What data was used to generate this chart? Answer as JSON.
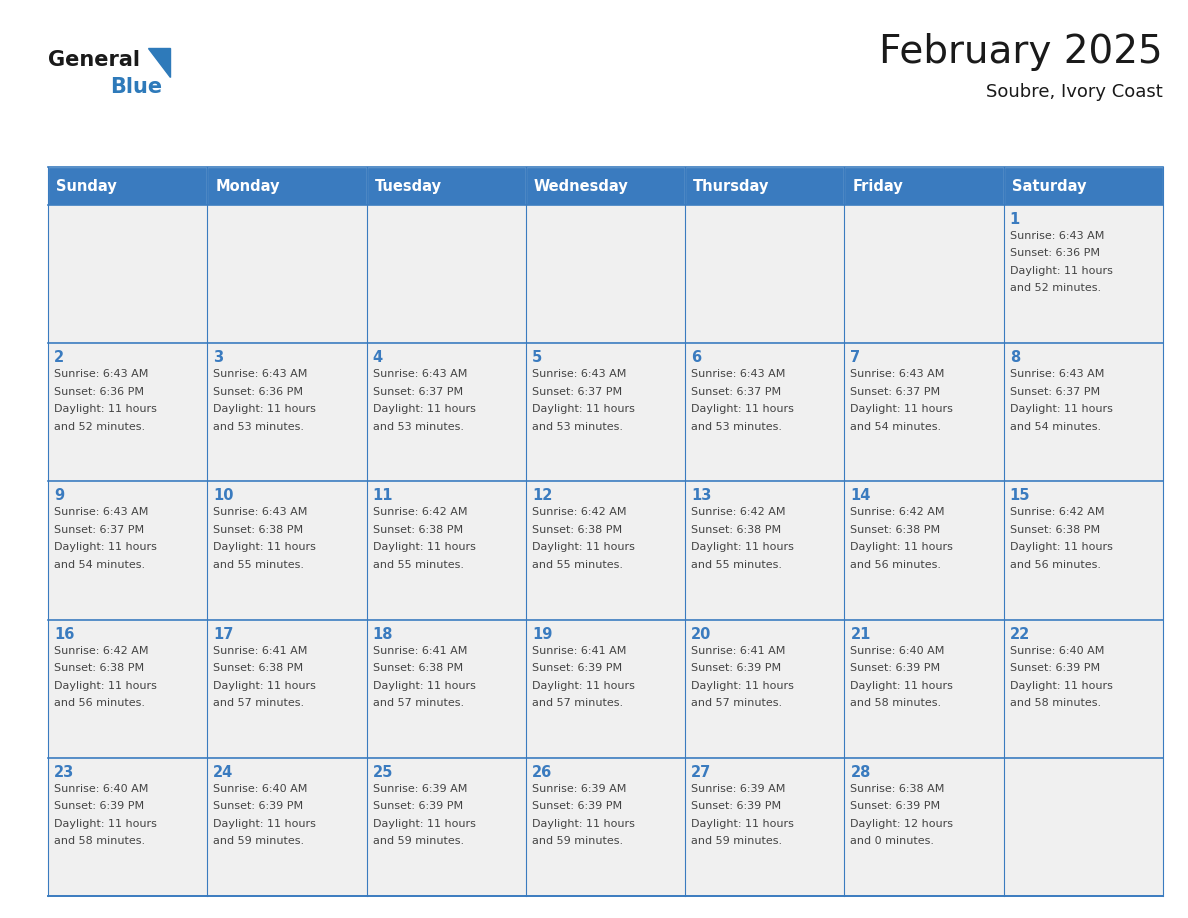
{
  "title": "February 2025",
  "subtitle": "Soubre, Ivory Coast",
  "header_bg_color": "#3a7bbf",
  "header_text_color": "#ffffff",
  "cell_bg_color": "#f0f0f0",
  "day_headers": [
    "Sunday",
    "Monday",
    "Tuesday",
    "Wednesday",
    "Thursday",
    "Friday",
    "Saturday"
  ],
  "grid_line_color": "#3a7bbf",
  "number_color": "#3a7bbf",
  "text_color": "#444444",
  "logo_general_color": "#1a1a1a",
  "logo_blue_color": "#2e7aba",
  "weeks": [
    [
      null,
      null,
      null,
      null,
      null,
      null,
      1
    ],
    [
      2,
      3,
      4,
      5,
      6,
      7,
      8
    ],
    [
      9,
      10,
      11,
      12,
      13,
      14,
      15
    ],
    [
      16,
      17,
      18,
      19,
      20,
      21,
      22
    ],
    [
      23,
      24,
      25,
      26,
      27,
      28,
      null
    ]
  ],
  "day_data": {
    "1": {
      "sunrise": "6:43 AM",
      "sunset": "6:36 PM",
      "daylight_h": "11",
      "daylight_m": "52"
    },
    "2": {
      "sunrise": "6:43 AM",
      "sunset": "6:36 PM",
      "daylight_h": "11",
      "daylight_m": "52"
    },
    "3": {
      "sunrise": "6:43 AM",
      "sunset": "6:36 PM",
      "daylight_h": "11",
      "daylight_m": "53"
    },
    "4": {
      "sunrise": "6:43 AM",
      "sunset": "6:37 PM",
      "daylight_h": "11",
      "daylight_m": "53"
    },
    "5": {
      "sunrise": "6:43 AM",
      "sunset": "6:37 PM",
      "daylight_h": "11",
      "daylight_m": "53"
    },
    "6": {
      "sunrise": "6:43 AM",
      "sunset": "6:37 PM",
      "daylight_h": "11",
      "daylight_m": "53"
    },
    "7": {
      "sunrise": "6:43 AM",
      "sunset": "6:37 PM",
      "daylight_h": "11",
      "daylight_m": "54"
    },
    "8": {
      "sunrise": "6:43 AM",
      "sunset": "6:37 PM",
      "daylight_h": "11",
      "daylight_m": "54"
    },
    "9": {
      "sunrise": "6:43 AM",
      "sunset": "6:37 PM",
      "daylight_h": "11",
      "daylight_m": "54"
    },
    "10": {
      "sunrise": "6:43 AM",
      "sunset": "6:38 PM",
      "daylight_h": "11",
      "daylight_m": "55"
    },
    "11": {
      "sunrise": "6:42 AM",
      "sunset": "6:38 PM",
      "daylight_h": "11",
      "daylight_m": "55"
    },
    "12": {
      "sunrise": "6:42 AM",
      "sunset": "6:38 PM",
      "daylight_h": "11",
      "daylight_m": "55"
    },
    "13": {
      "sunrise": "6:42 AM",
      "sunset": "6:38 PM",
      "daylight_h": "11",
      "daylight_m": "55"
    },
    "14": {
      "sunrise": "6:42 AM",
      "sunset": "6:38 PM",
      "daylight_h": "11",
      "daylight_m": "56"
    },
    "15": {
      "sunrise": "6:42 AM",
      "sunset": "6:38 PM",
      "daylight_h": "11",
      "daylight_m": "56"
    },
    "16": {
      "sunrise": "6:42 AM",
      "sunset": "6:38 PM",
      "daylight_h": "11",
      "daylight_m": "56"
    },
    "17": {
      "sunrise": "6:41 AM",
      "sunset": "6:38 PM",
      "daylight_h": "11",
      "daylight_m": "57"
    },
    "18": {
      "sunrise": "6:41 AM",
      "sunset": "6:38 PM",
      "daylight_h": "11",
      "daylight_m": "57"
    },
    "19": {
      "sunrise": "6:41 AM",
      "sunset": "6:39 PM",
      "daylight_h": "11",
      "daylight_m": "57"
    },
    "20": {
      "sunrise": "6:41 AM",
      "sunset": "6:39 PM",
      "daylight_h": "11",
      "daylight_m": "57"
    },
    "21": {
      "sunrise": "6:40 AM",
      "sunset": "6:39 PM",
      "daylight_h": "11",
      "daylight_m": "58"
    },
    "22": {
      "sunrise": "6:40 AM",
      "sunset": "6:39 PM",
      "daylight_h": "11",
      "daylight_m": "58"
    },
    "23": {
      "sunrise": "6:40 AM",
      "sunset": "6:39 PM",
      "daylight_h": "11",
      "daylight_m": "58"
    },
    "24": {
      "sunrise": "6:40 AM",
      "sunset": "6:39 PM",
      "daylight_h": "11",
      "daylight_m": "59"
    },
    "25": {
      "sunrise": "6:39 AM",
      "sunset": "6:39 PM",
      "daylight_h": "11",
      "daylight_m": "59"
    },
    "26": {
      "sunrise": "6:39 AM",
      "sunset": "6:39 PM",
      "daylight_h": "11",
      "daylight_m": "59"
    },
    "27": {
      "sunrise": "6:39 AM",
      "sunset": "6:39 PM",
      "daylight_h": "11",
      "daylight_m": "59"
    },
    "28": {
      "sunrise": "6:38 AM",
      "sunset": "6:39 PM",
      "daylight_h": "12",
      "daylight_m": "0"
    }
  }
}
